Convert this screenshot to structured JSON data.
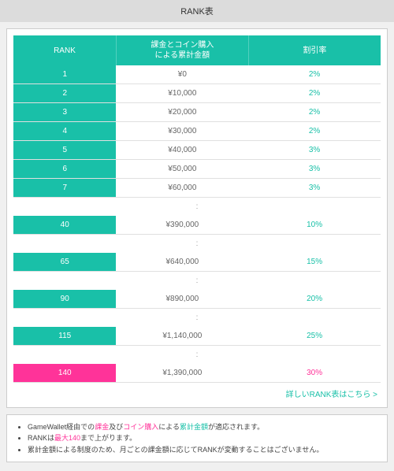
{
  "window": {
    "title": "RANK表"
  },
  "table": {
    "columns": [
      "RANK",
      "課金とコイン購入\nによる累計金額",
      "割引率"
    ],
    "column_widths": [
      "28%",
      "36%",
      "36%"
    ],
    "header_bg": "#19c0a8",
    "header_color": "#ffffff",
    "rank_colors": {
      "teal": "#19c0a8",
      "pink": "#ff3399"
    },
    "rate_colors": {
      "teal": "#19c0a8",
      "pink": "#ff3399"
    },
    "rows": [
      {
        "type": "data",
        "rank": "1",
        "amount": "¥0",
        "rate": "2%",
        "rank_color": "teal",
        "rate_color": "teal"
      },
      {
        "type": "data",
        "rank": "2",
        "amount": "¥10,000",
        "rate": "2%",
        "rank_color": "teal",
        "rate_color": "teal"
      },
      {
        "type": "data",
        "rank": "3",
        "amount": "¥20,000",
        "rate": "2%",
        "rank_color": "teal",
        "rate_color": "teal"
      },
      {
        "type": "data",
        "rank": "4",
        "amount": "¥30,000",
        "rate": "2%",
        "rank_color": "teal",
        "rate_color": "teal"
      },
      {
        "type": "data",
        "rank": "5",
        "amount": "¥40,000",
        "rate": "3%",
        "rank_color": "teal",
        "rate_color": "teal"
      },
      {
        "type": "data",
        "rank": "6",
        "amount": "¥50,000",
        "rate": "3%",
        "rank_color": "teal",
        "rate_color": "teal"
      },
      {
        "type": "data",
        "rank": "7",
        "amount": "¥60,000",
        "rate": "3%",
        "rank_color": "teal",
        "rate_color": "teal"
      },
      {
        "type": "ellipsis"
      },
      {
        "type": "data",
        "rank": "40",
        "amount": "¥390,000",
        "rate": "10%",
        "rank_color": "teal",
        "rate_color": "teal"
      },
      {
        "type": "ellipsis"
      },
      {
        "type": "data",
        "rank": "65",
        "amount": "¥640,000",
        "rate": "15%",
        "rank_color": "teal",
        "rate_color": "teal"
      },
      {
        "type": "ellipsis"
      },
      {
        "type": "data",
        "rank": "90",
        "amount": "¥890,000",
        "rate": "20%",
        "rank_color": "teal",
        "rate_color": "teal"
      },
      {
        "type": "ellipsis"
      },
      {
        "type": "data",
        "rank": "115",
        "amount": "¥1,140,000",
        "rate": "25%",
        "rank_color": "teal",
        "rate_color": "teal"
      },
      {
        "type": "ellipsis"
      },
      {
        "type": "data",
        "rank": "140",
        "amount": "¥1,390,000",
        "rate": "30%",
        "rank_color": "pink",
        "rate_color": "pink"
      }
    ],
    "ellipsis_glyph": ":"
  },
  "detail_link": {
    "label": "詳しいRANK表はこちら >"
  },
  "notes": [
    {
      "segments": [
        {
          "text": "GameWallet経由での"
        },
        {
          "text": "課金",
          "class": "hl-pink"
        },
        {
          "text": "及び"
        },
        {
          "text": "コイン購入",
          "class": "hl-pink"
        },
        {
          "text": "による"
        },
        {
          "text": "累計金額",
          "class": "hl-teal"
        },
        {
          "text": "が適応されます。"
        }
      ]
    },
    {
      "segments": [
        {
          "text": "RANKは"
        },
        {
          "text": "最大140",
          "class": "hl-pink"
        },
        {
          "text": "まで上がります。"
        }
      ]
    },
    {
      "segments": [
        {
          "text": "累計金額による制度のため、月ごとの課金額に応じてRANKが変動することはございません。"
        }
      ]
    }
  ]
}
